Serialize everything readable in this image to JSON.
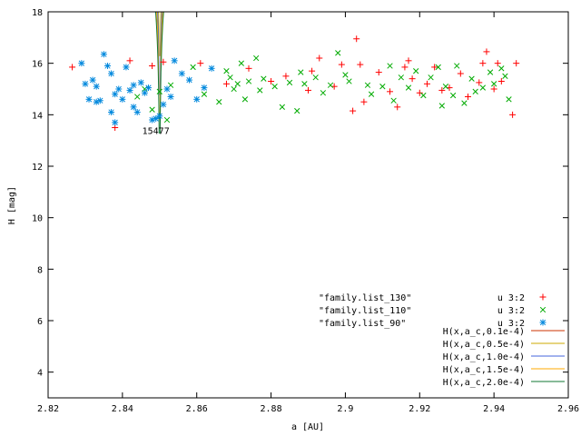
{
  "chart_data": {
    "type": "scatter",
    "xlabel": "a [AU]",
    "ylabel": "H [mag]",
    "xlim": [
      2.82,
      2.96
    ],
    "ylim": [
      3,
      18
    ],
    "x_ticks": [
      2.82,
      2.84,
      2.86,
      2.88,
      2.9,
      2.92,
      2.94,
      2.96
    ],
    "x_tick_labels": [
      "2.82",
      "2.84",
      "2.86",
      "2.88",
      "2.9",
      "2.92",
      "2.94",
      "2.96"
    ],
    "y_ticks": [
      4,
      6,
      8,
      10,
      12,
      14,
      16,
      18
    ],
    "y_tick_labels": [
      "4",
      "6",
      "8",
      "10",
      "12",
      "14",
      "16",
      "18"
    ],
    "grid": false,
    "legend_placement": "bottom-right",
    "annotation": {
      "text": "15477",
      "x": 2.849,
      "y": 13.25
    },
    "scatter_series": [
      {
        "name": "\"family.list_130\"",
        "legend_right": "u 3:2",
        "marker": "plus",
        "color": "#ff0000",
        "points": [
          [
            2.8265,
            15.85
          ],
          [
            2.838,
            13.5
          ],
          [
            2.842,
            16.1
          ],
          [
            2.848,
            15.9
          ],
          [
            2.851,
            16.05
          ],
          [
            2.861,
            16.0
          ],
          [
            2.868,
            15.2
          ],
          [
            2.874,
            15.8
          ],
          [
            2.88,
            15.3
          ],
          [
            2.884,
            15.5
          ],
          [
            2.891,
            15.7
          ],
          [
            2.893,
            16.2
          ],
          [
            2.899,
            15.95
          ],
          [
            2.902,
            14.15
          ],
          [
            2.903,
            16.95
          ],
          [
            2.904,
            15.95
          ],
          [
            2.905,
            14.5
          ],
          [
            2.909,
            15.65
          ],
          [
            2.912,
            14.9
          ],
          [
            2.914,
            14.3
          ],
          [
            2.916,
            15.85
          ],
          [
            2.918,
            15.4
          ],
          [
            2.92,
            14.85
          ],
          [
            2.922,
            15.2
          ],
          [
            2.924,
            15.85
          ],
          [
            2.926,
            14.95
          ],
          [
            2.928,
            15.05
          ],
          [
            2.931,
            15.6
          ],
          [
            2.933,
            14.7
          ],
          [
            2.936,
            15.25
          ],
          [
            2.937,
            16.0
          ],
          [
            2.938,
            16.45
          ],
          [
            2.94,
            15.0
          ],
          [
            2.941,
            16.0
          ],
          [
            2.942,
            15.3
          ],
          [
            2.945,
            14.0
          ],
          [
            2.946,
            16.0
          ],
          [
            2.89,
            14.95
          ],
          [
            2.897,
            15.1
          ],
          [
            2.917,
            16.1
          ]
        ]
      },
      {
        "name": "\"family.list_110\"",
        "legend_right": "u 3:2",
        "marker": "cross",
        "color": "#00aa00",
        "points": [
          [
            2.844,
            14.7
          ],
          [
            2.846,
            15.0
          ],
          [
            2.848,
            14.2
          ],
          [
            2.85,
            14.9
          ],
          [
            2.852,
            13.8
          ],
          [
            2.853,
            15.15
          ],
          [
            2.859,
            15.85
          ],
          [
            2.862,
            14.8
          ],
          [
            2.866,
            14.5
          ],
          [
            2.868,
            15.7
          ],
          [
            2.869,
            15.45
          ],
          [
            2.87,
            15.0
          ],
          [
            2.871,
            15.2
          ],
          [
            2.872,
            16.0
          ],
          [
            2.873,
            14.6
          ],
          [
            2.874,
            15.3
          ],
          [
            2.876,
            16.2
          ],
          [
            2.877,
            14.95
          ],
          [
            2.878,
            15.4
          ],
          [
            2.881,
            15.1
          ],
          [
            2.883,
            14.3
          ],
          [
            2.885,
            15.25
          ],
          [
            2.887,
            14.15
          ],
          [
            2.888,
            15.65
          ],
          [
            2.889,
            15.2
          ],
          [
            2.892,
            15.45
          ],
          [
            2.894,
            14.85
          ],
          [
            2.896,
            15.15
          ],
          [
            2.898,
            16.4
          ],
          [
            2.9,
            15.55
          ],
          [
            2.901,
            15.3
          ],
          [
            2.906,
            15.15
          ],
          [
            2.907,
            14.8
          ],
          [
            2.91,
            15.1
          ],
          [
            2.912,
            15.9
          ],
          [
            2.913,
            14.55
          ],
          [
            2.915,
            15.45
          ],
          [
            2.917,
            15.05
          ],
          [
            2.919,
            15.7
          ],
          [
            2.921,
            14.75
          ],
          [
            2.923,
            15.45
          ],
          [
            2.925,
            15.85
          ],
          [
            2.926,
            14.35
          ],
          [
            2.927,
            15.1
          ],
          [
            2.929,
            14.75
          ],
          [
            2.93,
            15.9
          ],
          [
            2.932,
            14.45
          ],
          [
            2.934,
            15.4
          ],
          [
            2.935,
            14.9
          ],
          [
            2.937,
            15.05
          ],
          [
            2.939,
            15.65
          ],
          [
            2.94,
            15.2
          ],
          [
            2.942,
            15.8
          ],
          [
            2.943,
            15.5
          ],
          [
            2.944,
            14.6
          ]
        ]
      },
      {
        "name": "\"family.list_90\"",
        "legend_right": "u 3:2",
        "marker": "star",
        "color": "#0088dd",
        "points": [
          [
            2.829,
            16.0
          ],
          [
            2.83,
            15.2
          ],
          [
            2.831,
            14.6
          ],
          [
            2.832,
            15.35
          ],
          [
            2.833,
            15.1
          ],
          [
            2.834,
            14.55
          ],
          [
            2.835,
            16.35
          ],
          [
            2.836,
            15.9
          ],
          [
            2.837,
            14.1
          ],
          [
            2.837,
            15.6
          ],
          [
            2.838,
            14.8
          ],
          [
            2.838,
            13.7
          ],
          [
            2.839,
            15.0
          ],
          [
            2.84,
            14.6
          ],
          [
            2.841,
            15.85
          ],
          [
            2.842,
            14.95
          ],
          [
            2.843,
            14.3
          ],
          [
            2.844,
            14.1
          ],
          [
            2.845,
            15.25
          ],
          [
            2.846,
            14.85
          ],
          [
            2.847,
            15.05
          ],
          [
            2.848,
            13.8
          ],
          [
            2.849,
            13.85
          ],
          [
            2.85,
            13.95
          ],
          [
            2.851,
            14.4
          ],
          [
            2.852,
            15.0
          ],
          [
            2.853,
            14.7
          ],
          [
            2.854,
            16.1
          ],
          [
            2.856,
            15.6
          ],
          [
            2.858,
            15.35
          ],
          [
            2.86,
            14.6
          ],
          [
            2.862,
            15.05
          ],
          [
            2.864,
            15.8
          ],
          [
            2.833,
            14.5
          ],
          [
            2.843,
            15.15
          ]
        ]
      }
    ],
    "curve_series": [
      {
        "name": "H(x,a_c,0.1e-4)",
        "color": "#cc3300"
      },
      {
        "name": "H(x,a_c,0.5e-4)",
        "color": "#ccaa00"
      },
      {
        "name": "H(x,a_c,1.0e-4)",
        "color": "#4466dd"
      },
      {
        "name": "H(x,a_c,1.5e-4)",
        "color": "#ffaa00"
      },
      {
        "name": "H(x,a_c,2.0e-4)",
        "color": "#117733"
      }
    ]
  }
}
